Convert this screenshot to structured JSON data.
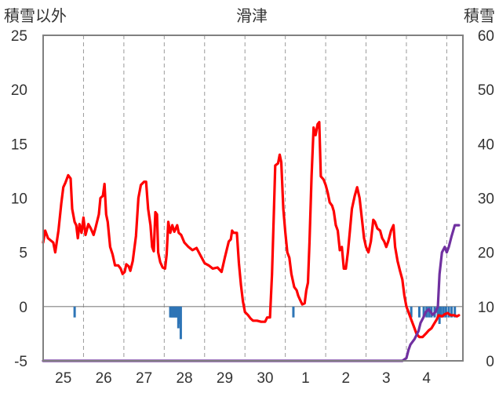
{
  "chart_data": {
    "type": "line",
    "title": "滑津",
    "left_axis_label": "積雪以外",
    "right_axis_label": "積雪",
    "categories": [
      "25",
      "26",
      "27",
      "28",
      "29",
      "30",
      "1",
      "2",
      "3",
      "4"
    ],
    "y_left": {
      "ylim": [
        -5,
        25
      ],
      "ticks": [
        -5,
        0,
        5,
        10,
        15,
        20,
        25
      ]
    },
    "y_right": {
      "ylim": [
        0,
        60
      ],
      "ticks": [
        0,
        10,
        20,
        30,
        40,
        50,
        60
      ]
    },
    "x": {
      "xlim": [
        0,
        10.4
      ],
      "day_centers": [
        0.5,
        1.5,
        2.5,
        3.5,
        4.5,
        5.5,
        6.5,
        7.5,
        8.5,
        9.5
      ]
    },
    "grid": "vertical dashed day boundaries",
    "series": [
      {
        "axis": "left",
        "color": "#ff0000",
        "points": [
          [
            0.0,
            5.9
          ],
          [
            0.05,
            7.0
          ],
          [
            0.12,
            6.3
          ],
          [
            0.25,
            5.9
          ],
          [
            0.3,
            5.0
          ],
          [
            0.38,
            7.0
          ],
          [
            0.45,
            9.5
          ],
          [
            0.5,
            11.0
          ],
          [
            0.55,
            11.4
          ],
          [
            0.62,
            12.1
          ],
          [
            0.68,
            11.8
          ],
          [
            0.72,
            9.0
          ],
          [
            0.78,
            7.8
          ],
          [
            0.82,
            7.5
          ],
          [
            0.86,
            6.3
          ],
          [
            0.9,
            7.6
          ],
          [
            0.95,
            6.8
          ],
          [
            1.0,
            8.2
          ],
          [
            1.05,
            6.6
          ],
          [
            1.12,
            7.6
          ],
          [
            1.18,
            7.2
          ],
          [
            1.25,
            6.6
          ],
          [
            1.3,
            7.3
          ],
          [
            1.38,
            8.5
          ],
          [
            1.42,
            10.0
          ],
          [
            1.48,
            10.2
          ],
          [
            1.52,
            11.3
          ],
          [
            1.56,
            8.5
          ],
          [
            1.6,
            7.8
          ],
          [
            1.66,
            5.5
          ],
          [
            1.72,
            4.8
          ],
          [
            1.78,
            3.8
          ],
          [
            1.86,
            3.8
          ],
          [
            1.92,
            3.5
          ],
          [
            1.97,
            3.0
          ],
          [
            2.02,
            3.2
          ],
          [
            2.06,
            3.9
          ],
          [
            2.12,
            3.7
          ],
          [
            2.16,
            3.3
          ],
          [
            2.22,
            4.2
          ],
          [
            2.3,
            6.5
          ],
          [
            2.36,
            10.0
          ],
          [
            2.42,
            11.2
          ],
          [
            2.5,
            11.5
          ],
          [
            2.55,
            11.5
          ],
          [
            2.6,
            9.0
          ],
          [
            2.66,
            7.5
          ],
          [
            2.7,
            5.5
          ],
          [
            2.74,
            5.1
          ],
          [
            2.78,
            8.7
          ],
          [
            2.82,
            8.5
          ],
          [
            2.85,
            5.0
          ],
          [
            2.9,
            4.1
          ],
          [
            2.96,
            3.6
          ],
          [
            3.02,
            3.5
          ],
          [
            3.06,
            4.8
          ],
          [
            3.1,
            7.8
          ],
          [
            3.15,
            6.8
          ],
          [
            3.2,
            7.5
          ],
          [
            3.25,
            6.9
          ],
          [
            3.32,
            7.5
          ],
          [
            3.36,
            6.8
          ],
          [
            3.42,
            6.6
          ],
          [
            3.5,
            5.9
          ],
          [
            3.6,
            5.5
          ],
          [
            3.7,
            5.2
          ],
          [
            3.8,
            5.4
          ],
          [
            3.9,
            4.7
          ],
          [
            4.0,
            4.0
          ],
          [
            4.1,
            3.8
          ],
          [
            4.2,
            3.5
          ],
          [
            4.32,
            3.6
          ],
          [
            4.42,
            3.2
          ],
          [
            4.5,
            4.5
          ],
          [
            4.6,
            6.0
          ],
          [
            4.65,
            6.2
          ],
          [
            4.68,
            7.0
          ],
          [
            4.72,
            6.8
          ],
          [
            4.8,
            6.8
          ],
          [
            4.85,
            4.0
          ],
          [
            4.9,
            2.0
          ],
          [
            4.95,
            0.5
          ],
          [
            5.0,
            -0.5
          ],
          [
            5.08,
            -0.8
          ],
          [
            5.14,
            -1.1
          ],
          [
            5.2,
            -1.3
          ],
          [
            5.3,
            -1.3
          ],
          [
            5.4,
            -1.4
          ],
          [
            5.5,
            -1.4
          ],
          [
            5.55,
            -1.0
          ],
          [
            5.62,
            -1.0
          ],
          [
            5.67,
            3.0
          ],
          [
            5.72,
            9.0
          ],
          [
            5.75,
            13.0
          ],
          [
            5.82,
            13.2
          ],
          [
            5.86,
            14.0
          ],
          [
            5.9,
            13.3
          ],
          [
            5.95,
            9.0
          ],
          [
            6.0,
            6.8
          ],
          [
            6.05,
            5.0
          ],
          [
            6.1,
            4.5
          ],
          [
            6.15,
            3.0
          ],
          [
            6.22,
            1.8
          ],
          [
            6.28,
            1.5
          ],
          [
            6.32,
            1.0
          ],
          [
            6.38,
            0.5
          ],
          [
            6.42,
            0.2
          ],
          [
            6.48,
            0.3
          ],
          [
            6.52,
            1.5
          ],
          [
            6.56,
            2.2
          ],
          [
            6.6,
            6.0
          ],
          [
            6.65,
            12.0
          ],
          [
            6.7,
            16.5
          ],
          [
            6.75,
            15.8
          ],
          [
            6.8,
            16.8
          ],
          [
            6.84,
            17.0
          ],
          [
            6.88,
            12.0
          ],
          [
            6.95,
            11.7
          ],
          [
            7.0,
            11.2
          ],
          [
            7.05,
            10.5
          ],
          [
            7.1,
            9.6
          ],
          [
            7.16,
            9.3
          ],
          [
            7.2,
            8.8
          ],
          [
            7.25,
            7.5
          ],
          [
            7.3,
            7.0
          ],
          [
            7.35,
            5.2
          ],
          [
            7.4,
            5.5
          ],
          [
            7.45,
            3.5
          ],
          [
            7.5,
            3.5
          ],
          [
            7.55,
            5.0
          ],
          [
            7.6,
            7.0
          ],
          [
            7.65,
            9.0
          ],
          [
            7.72,
            10.2
          ],
          [
            7.78,
            11.0
          ],
          [
            7.84,
            10.0
          ],
          [
            7.9,
            8.0
          ],
          [
            7.95,
            6.3
          ],
          [
            8.0,
            5.5
          ],
          [
            8.06,
            5.0
          ],
          [
            8.12,
            6.0
          ],
          [
            8.18,
            8.0
          ],
          [
            8.22,
            7.8
          ],
          [
            8.28,
            7.2
          ],
          [
            8.35,
            7.0
          ],
          [
            8.4,
            6.3
          ],
          [
            8.45,
            6.0
          ],
          [
            8.5,
            5.5
          ],
          [
            8.55,
            6.0
          ],
          [
            8.62,
            7.0
          ],
          [
            8.68,
            7.5
          ],
          [
            8.72,
            5.5
          ],
          [
            8.78,
            4.2
          ],
          [
            8.84,
            3.3
          ],
          [
            8.9,
            2.5
          ],
          [
            8.95,
            1.0
          ],
          [
            9.0,
            0.0
          ],
          [
            9.05,
            -0.5
          ],
          [
            9.1,
            -1.0
          ],
          [
            9.15,
            -1.5
          ],
          [
            9.2,
            -2.0
          ],
          [
            9.25,
            -2.5
          ],
          [
            9.32,
            -2.8
          ],
          [
            9.4,
            -2.8
          ],
          [
            9.48,
            -2.5
          ],
          [
            9.55,
            -2.2
          ],
          [
            9.62,
            -2.0
          ],
          [
            9.7,
            -1.5
          ],
          [
            9.75,
            -1.2
          ],
          [
            9.8,
            -0.8
          ],
          [
            9.88,
            -0.9
          ],
          [
            9.95,
            -0.7
          ],
          [
            10.02,
            -0.6
          ],
          [
            10.1,
            -0.8
          ],
          [
            10.18,
            -0.8
          ],
          [
            10.25,
            -0.9
          ],
          [
            10.3,
            -0.8
          ]
        ]
      },
      {
        "axis": "right",
        "color": "#7030a0",
        "points": [
          [
            0.0,
            0
          ],
          [
            8.9,
            0
          ],
          [
            9.0,
            0.5
          ],
          [
            9.05,
            2
          ],
          [
            9.1,
            3
          ],
          [
            9.2,
            4
          ],
          [
            9.3,
            5.5
          ],
          [
            9.35,
            7
          ],
          [
            9.42,
            8
          ],
          [
            9.48,
            9
          ],
          [
            9.55,
            9.5
          ],
          [
            9.6,
            9
          ],
          [
            9.65,
            8.5
          ],
          [
            9.72,
            9
          ],
          [
            9.78,
            10
          ],
          [
            9.82,
            16
          ],
          [
            9.88,
            20
          ],
          [
            9.95,
            21
          ],
          [
            10.0,
            20
          ],
          [
            10.05,
            21
          ],
          [
            10.12,
            23
          ],
          [
            10.2,
            25
          ],
          [
            10.3,
            25
          ]
        ]
      }
    ],
    "bars": {
      "axis": "left",
      "color": "#2e75b6",
      "values": [
        [
          0.78,
          -1.0
        ],
        [
          3.15,
          -1.0
        ],
        [
          3.17,
          -1.0
        ],
        [
          3.19,
          -1.0
        ],
        [
          3.21,
          -1.0
        ],
        [
          3.23,
          -1.0
        ],
        [
          3.25,
          -1.0
        ],
        [
          3.27,
          -1.0
        ],
        [
          3.29,
          -1.0
        ],
        [
          3.31,
          -1.0
        ],
        [
          3.33,
          -1.0
        ],
        [
          3.35,
          -2.0
        ],
        [
          3.38,
          -1.6
        ],
        [
          3.41,
          -3.0
        ],
        [
          6.2,
          -1.0
        ],
        [
          9.12,
          -1.0
        ],
        [
          9.32,
          -1.0
        ],
        [
          9.43,
          -1.0
        ],
        [
          9.5,
          -1.0
        ],
        [
          9.56,
          -1.0
        ],
        [
          9.62,
          -1.0
        ],
        [
          9.7,
          -1.0
        ],
        [
          9.78,
          -1.0
        ],
        [
          9.82,
          -1.6
        ],
        [
          9.86,
          -1.0
        ],
        [
          9.92,
          -1.0
        ],
        [
          9.98,
          -1.0
        ],
        [
          10.05,
          -1.0
        ],
        [
          10.12,
          -1.0
        ],
        [
          10.2,
          -1.0
        ]
      ]
    }
  }
}
